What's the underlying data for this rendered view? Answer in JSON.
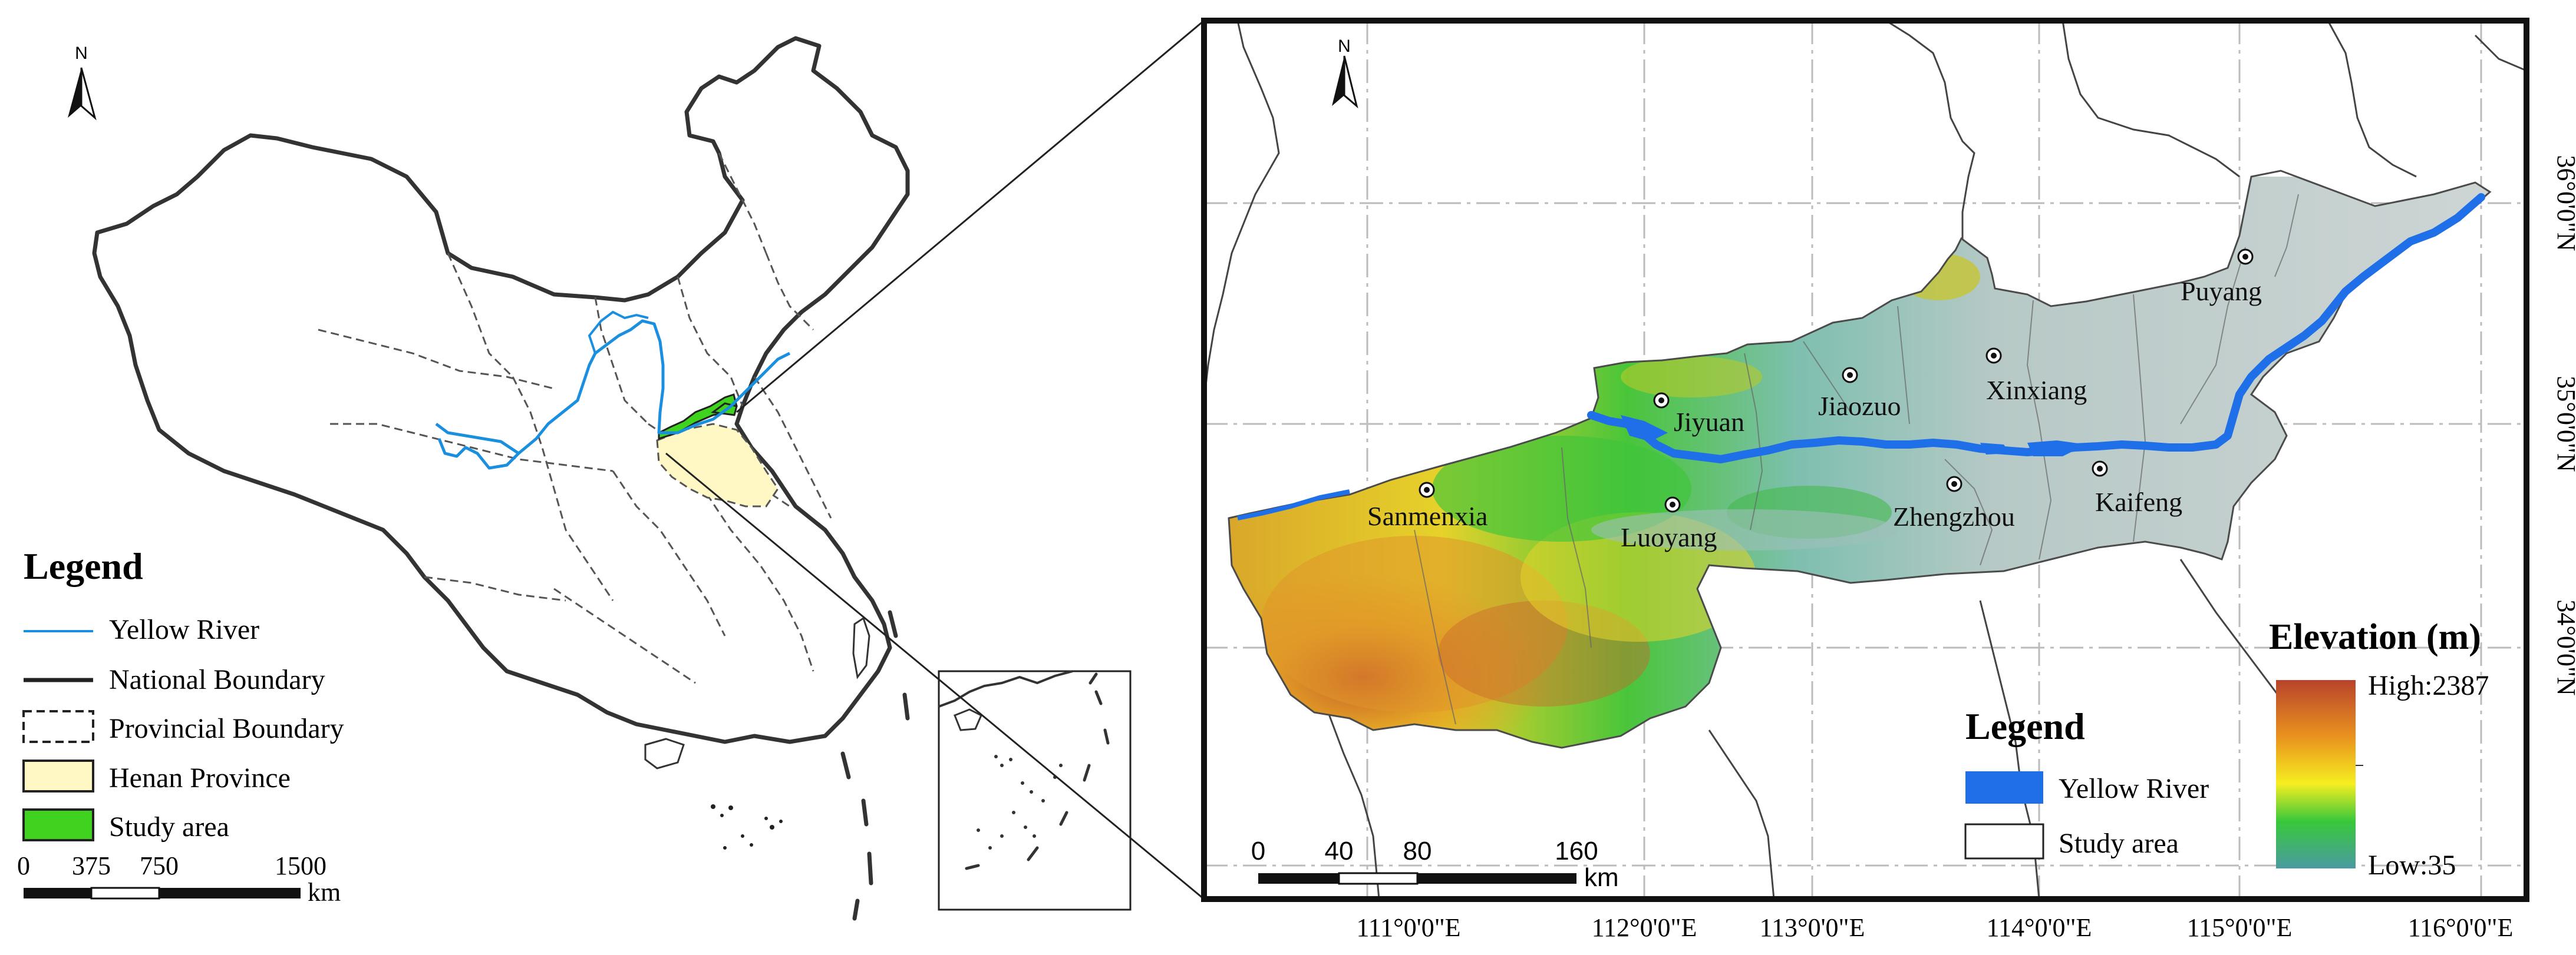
{
  "overview": {
    "north_label": "N",
    "legend": {
      "title": "Legend",
      "items": [
        {
          "label": "Yellow River"
        },
        {
          "label": "National Boundary"
        },
        {
          "label": "Provincial Boundary"
        },
        {
          "label": "Henan Province"
        },
        {
          "label": "Study area"
        }
      ]
    },
    "scalebar": {
      "ticks": [
        "0",
        "375",
        "750",
        "1500"
      ],
      "unit": "km"
    }
  },
  "detail": {
    "north_label": "N",
    "cities": [
      {
        "name": "Jiyuan"
      },
      {
        "name": "Jiaozuo"
      },
      {
        "name": "Xinxiang"
      },
      {
        "name": "Puyang"
      },
      {
        "name": "Kaifeng"
      },
      {
        "name": "Zhengzhou"
      },
      {
        "name": "Luoyang"
      },
      {
        "name": "Sanmenxia"
      }
    ],
    "lon_labels": [
      "111°0'0\"E",
      "112°0'0\"E",
      "113°0'0\"E",
      "114°0'0\"E",
      "115°0'0\"E",
      "116°0'0\"E"
    ],
    "lat_labels": [
      "36°0'0\"N",
      "35°0'0\"N",
      "34°0'0\"N"
    ],
    "legend": {
      "title": "Legend",
      "items": [
        {
          "label": "Yellow River"
        },
        {
          "label": "Study area"
        }
      ]
    },
    "elevation": {
      "title": "Elevation (m)",
      "high": "High:2387",
      "low": "Low:35"
    },
    "scalebar": {
      "ticks": [
        "0",
        "40",
        "80",
        "160"
      ],
      "unit": "km"
    }
  },
  "colors": {
    "river": "#1f6fe8",
    "study_area": "#3fd21f",
    "henan": "#fff8c4",
    "basemap_gray": "#cfd4d4",
    "frame": "#111111"
  }
}
